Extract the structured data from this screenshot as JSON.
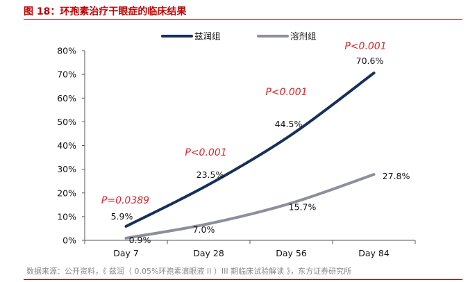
{
  "figure": {
    "title": "图 18：环孢素治疗干眼症的临床结果",
    "source": "数据来源：公开资料，《 兹润（ 0.05%环孢素滴眼液 II ）III 期临床试验解读 》，东方证券研究所"
  },
  "colors": {
    "title": "#c00000",
    "series_1": "#16305a",
    "series_2": "#8d8f9c",
    "p_value": "#e8202a"
  },
  "chart_data": {
    "type": "line",
    "categories": [
      "Day 7",
      "Day 28",
      "Day 56",
      "Day 84"
    ],
    "series": [
      {
        "name": "兹润组",
        "values": [
          5.9,
          23.5,
          44.5,
          70.6
        ],
        "labels": [
          "5.9%",
          "23.5%",
          "44.5%",
          "70.6%"
        ]
      },
      {
        "name": "溶剂组",
        "values": [
          0.9,
          7.0,
          15.7,
          27.8
        ],
        "labels": [
          "0.9%",
          "7.0%",
          "15.7%",
          "27.8%"
        ]
      }
    ],
    "annotations": [
      "P=0.0389",
      "P<0.001",
      "P<0.001",
      "P<0.001"
    ],
    "y_ticks": [
      "0%",
      "10%",
      "20%",
      "30%",
      "40%",
      "50%",
      "60%",
      "70%",
      "80%"
    ],
    "ylim": [
      0,
      80
    ],
    "grid": false,
    "legend_position": "top"
  }
}
